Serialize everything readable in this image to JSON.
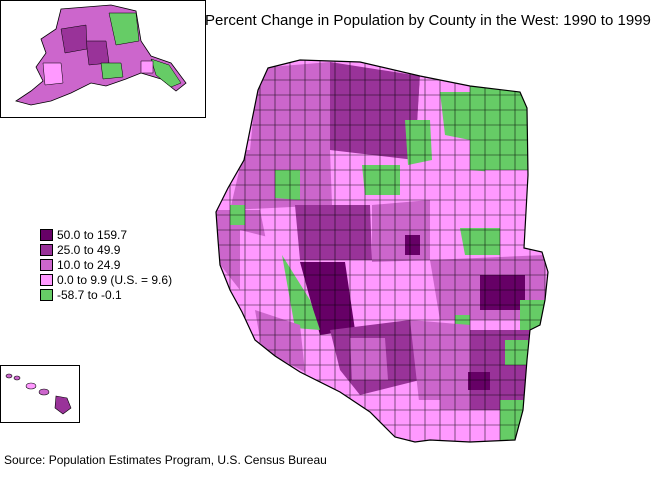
{
  "title": "Percent Change in Population by County in the West: 1990 to 1999",
  "legend": [
    {
      "label": "50.0 to 159.7",
      "color": "#660066"
    },
    {
      "label": "25.0 to 49.9",
      "color": "#993399"
    },
    {
      "label": "10.0 to 24.9",
      "color": "#cc66cc"
    },
    {
      "label": "0.0 to 9.9 (U.S. = 9.6)",
      "color": "#ff99ff"
    },
    {
      "label": "-58.7 to -0.1",
      "color": "#66cc66"
    }
  ],
  "source": "Source: Population Estimates Program, U.S. Census Bureau",
  "colors": {
    "border": "#000000",
    "background": "#ffffff"
  }
}
